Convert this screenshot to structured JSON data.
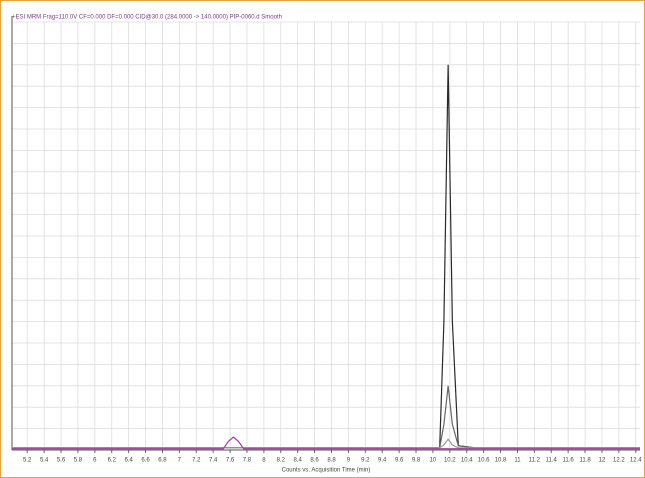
{
  "chart_data": {
    "type": "line",
    "title": "+ESI MRM Frag=110.0V CF=0.000 DF=0.000 CID@30.0 (284.0000 -> 140.0000) PIP-0060.d Smooth",
    "x_label": "Counts vs. Acquisition Time (min)",
    "x": [
      5.02,
      7.52,
      7.58,
      7.64,
      7.7,
      7.76,
      10.08,
      10.13,
      10.18,
      10.23,
      10.3,
      10.5,
      12.45
    ],
    "series": [
      {
        "color": "#2a2a2a",
        "values": [
          0.5,
          0.5,
          0.5,
          0.5,
          0.5,
          0.5,
          0.5,
          30,
          90,
          30,
          1,
          0.5,
          0.5
        ]
      },
      {
        "color": "#666666",
        "values": [
          0.5,
          0.5,
          0.5,
          0.5,
          0.5,
          0.5,
          0.5,
          6,
          15,
          6,
          1,
          0.5,
          0.5
        ]
      },
      {
        "color": "#9a9a9a",
        "values": [
          0.5,
          0.5,
          0.5,
          0.5,
          0.5,
          0.5,
          0.5,
          1.2,
          2.5,
          1.2,
          0.5,
          0.5,
          0.5
        ]
      },
      {
        "color": "#a040a0",
        "values": [
          0.3,
          0.3,
          2,
          3,
          2,
          0.3,
          0.3,
          0.3,
          0.3,
          0.3,
          0.3,
          0.3,
          0.3
        ]
      }
    ],
    "xlim": [
      5.02,
      12.45
    ],
    "xticks": [
      5.2,
      5.4,
      5.6,
      5.8,
      6,
      6.2,
      6.4,
      6.6,
      6.8,
      7,
      7.2,
      7.4,
      7.6,
      7.8,
      8,
      8.2,
      8.4,
      8.6,
      8.8,
      9,
      9.2,
      9.4,
      9.6,
      9.8,
      10,
      10.2,
      10.4,
      10.6,
      10.8,
      11,
      11.2,
      11.4,
      11.6,
      11.8,
      12,
      12.2,
      12.4
    ],
    "ylim": [
      0,
      100
    ],
    "yticks": [
      0,
      5,
      10,
      15,
      20,
      25,
      30,
      35,
      40,
      45,
      50,
      55,
      60,
      65,
      70,
      75,
      80,
      85,
      90,
      95,
      100
    ],
    "grid": true
  }
}
